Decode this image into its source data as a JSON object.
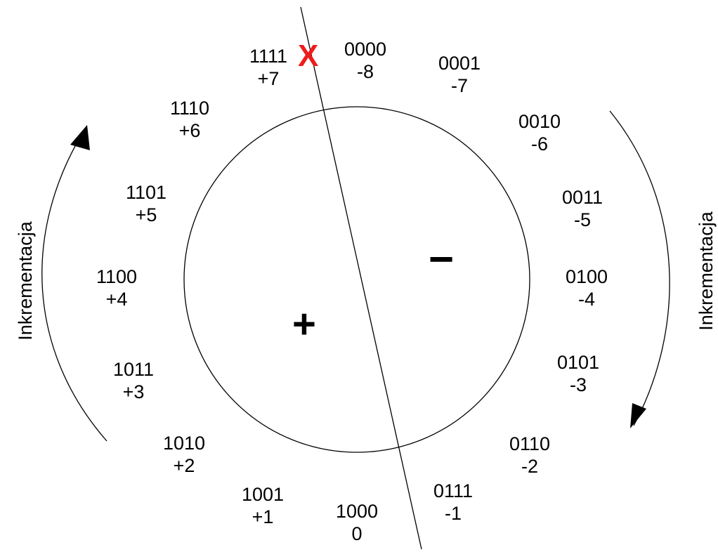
{
  "wheel": {
    "entries": [
      {
        "bits": "0000",
        "value": "-8"
      },
      {
        "bits": "0001",
        "value": "-7"
      },
      {
        "bits": "0010",
        "value": "-6"
      },
      {
        "bits": "0011",
        "value": "-5"
      },
      {
        "bits": "0100",
        "value": "-4"
      },
      {
        "bits": "0101",
        "value": "-3"
      },
      {
        "bits": "0110",
        "value": "-2"
      },
      {
        "bits": "0111",
        "value": "-1"
      },
      {
        "bits": "1000",
        "value": "0"
      },
      {
        "bits": "1001",
        "value": "+1"
      },
      {
        "bits": "1010",
        "value": "+2"
      },
      {
        "bits": "1011",
        "value": "+3"
      },
      {
        "bits": "1100",
        "value": "+4"
      },
      {
        "bits": "1101",
        "value": "+5"
      },
      {
        "bits": "1110",
        "value": "+6"
      },
      {
        "bits": "1111",
        "value": "+7"
      }
    ]
  },
  "signs": {
    "plus": "+",
    "minus": "−"
  },
  "overflow_mark": {
    "text": "X",
    "color": "#ee1c1c"
  },
  "arrows": {
    "left_label": "Inkrementacja",
    "right_label": "Inkrementacja"
  },
  "colors": {
    "line": "#000000",
    "background": "#ffffff"
  }
}
